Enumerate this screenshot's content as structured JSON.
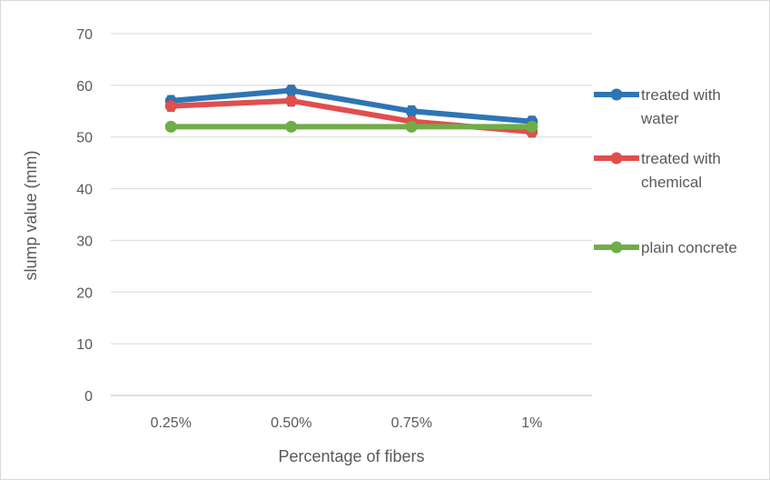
{
  "chart_data": {
    "type": "line",
    "title": "",
    "xlabel": "Percentage of fibers",
    "ylabel": "slump value (mm)",
    "categories": [
      "0.25%",
      "0.50%",
      "0.75%",
      "1%"
    ],
    "ylim": [
      0,
      70
    ],
    "yticks": [
      0,
      10,
      20,
      30,
      40,
      50,
      60,
      70
    ],
    "grid": true,
    "legend_position": "right",
    "series": [
      {
        "name": "treated with water",
        "legend_lines": [
          "treated with",
          "water"
        ],
        "color": "#2e75b6",
        "values": [
          57,
          59,
          55,
          53
        ],
        "error": 1
      },
      {
        "name": "treated with chemical",
        "legend_lines": [
          "treated with",
          "chemical"
        ],
        "color": "#e04e4e",
        "values": [
          56,
          57,
          53,
          51
        ],
        "error": 1
      },
      {
        "name": "plain concrete",
        "legend_lines": [
          "plain concrete"
        ],
        "color": "#70ad47",
        "values": [
          52,
          52,
          52,
          52
        ],
        "error": 0
      }
    ]
  }
}
